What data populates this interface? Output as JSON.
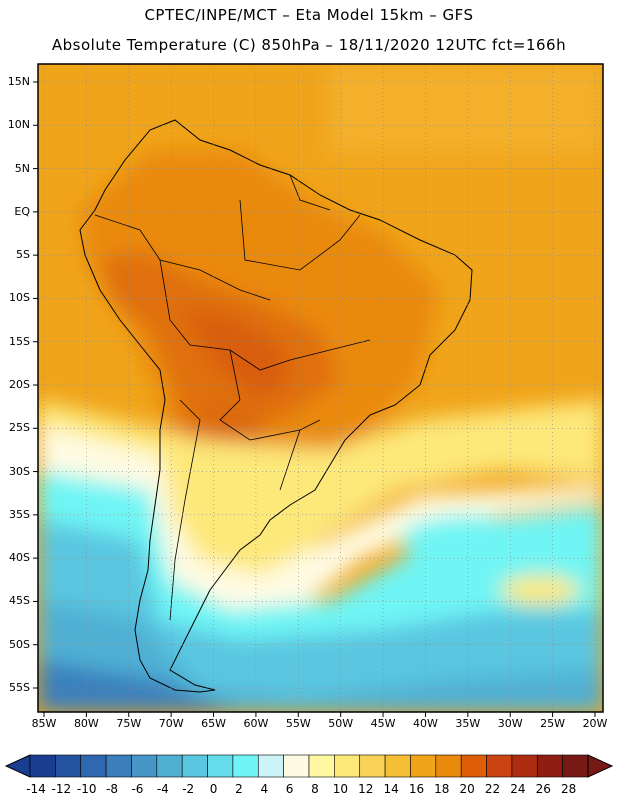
{
  "title_line1": "CPTEC/INPE/MCT –  Eta Model 15km – GFS",
  "title_line2": "Absolute Temperature (C) 850hPa – 18/11/2020 12UTC fct=166h",
  "lat_labels": [
    "15N",
    "10N",
    "5N",
    "EQ",
    "5S",
    "10S",
    "15S",
    "20S",
    "25S",
    "30S",
    "35S",
    "40S",
    "45S",
    "50S",
    "55S"
  ],
  "lat_values": [
    15,
    10,
    5,
    0,
    -5,
    -10,
    -15,
    -20,
    -25,
    -30,
    -35,
    -40,
    -45,
    -50,
    -55
  ],
  "lon_labels": [
    "85W",
    "80W",
    "75W",
    "70W",
    "65W",
    "60W",
    "55W",
    "50W",
    "45W",
    "40W",
    "35W",
    "30W",
    "25W",
    "20W"
  ],
  "lon_values": [
    -85,
    -80,
    -75,
    -70,
    -65,
    -60,
    -55,
    -50,
    -45,
    -40,
    -35,
    -30,
    -25,
    -20
  ],
  "colorbar": {
    "labels": [
      "-14",
      "-12",
      "-10",
      "-8",
      "-6",
      "-4",
      "-2",
      "0",
      "2",
      "4",
      "6",
      "8",
      "10",
      "12",
      "14",
      "16",
      "18",
      "20",
      "22",
      "24",
      "26",
      "28"
    ],
    "colors": [
      "#1a3d8f",
      "#25539f",
      "#2f68ae",
      "#3b80bd",
      "#4697c7",
      "#4fb0d4",
      "#5ac6e0",
      "#63dceb",
      "#6ff5f5",
      "#cbf3f8",
      "#fffbe3",
      "#fff8a0",
      "#fde87a",
      "#f9d357",
      "#f4be35",
      "#f0a41a",
      "#ea8a0c",
      "#de5e08",
      "#c94410",
      "#ac2d11",
      "#8f1e12",
      "#771a16"
    ]
  },
  "colors": {
    "map_border": "#000000",
    "grid": "#888888"
  }
}
